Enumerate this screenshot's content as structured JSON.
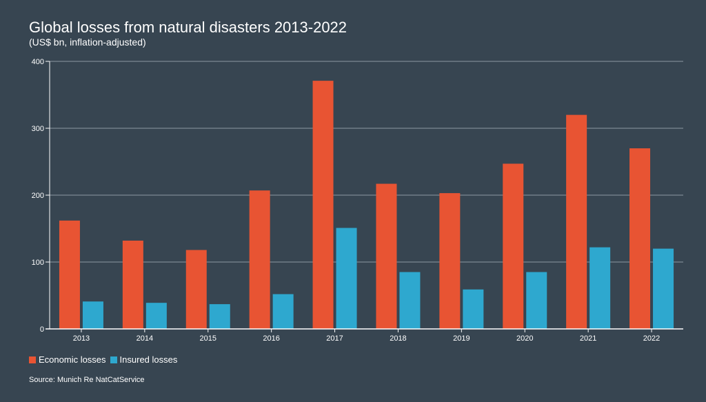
{
  "chart_data": {
    "type": "bar",
    "title": "Global losses from natural disasters 2013-2022",
    "subtitle": "(US$ bn, inflation-adjusted)",
    "categories": [
      "2013",
      "2014",
      "2015",
      "2016",
      "2017",
      "2018",
      "2019",
      "2020",
      "2021",
      "2022"
    ],
    "series": [
      {
        "name": "Economic losses",
        "color": "#e85433",
        "values": [
          162,
          132,
          118,
          207,
          371,
          217,
          203,
          247,
          320,
          270
        ]
      },
      {
        "name": "Insured losses",
        "color": "#2ea8cf",
        "values": [
          41,
          39,
          37,
          52,
          151,
          85,
          59,
          85,
          122,
          120
        ]
      }
    ],
    "ylim": [
      0,
      400
    ],
    "yticks": [
      0,
      100,
      200,
      300,
      400
    ],
    "xlabel": "",
    "ylabel": "",
    "grid": true,
    "legend_position": "bottom-left",
    "source": "Source: Munich Re NatCatService"
  },
  "colors": {
    "background": "#374551",
    "gridline": "#8e99a2",
    "axis": "#ffffff",
    "text": "#ffffff"
  }
}
